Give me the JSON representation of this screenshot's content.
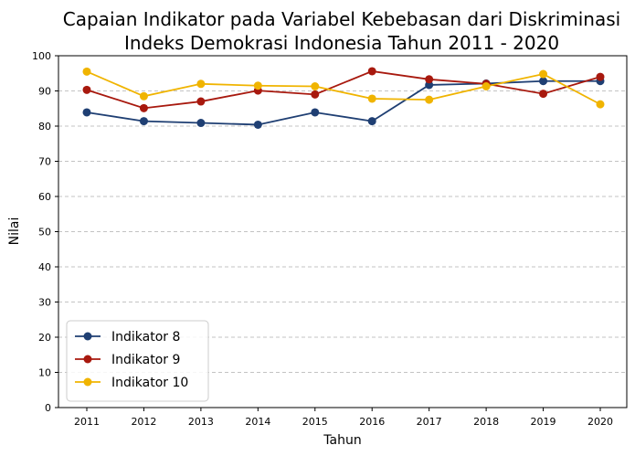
{
  "chart_data": {
    "type": "line",
    "title": "Capaian Indikator pada Variabel Kebebasan dari Diskriminasi",
    "subtitle": "Indeks Demokrasi Indonesia Tahun 2011 - 2020",
    "xlabel": "Tahun",
    "ylabel": "Nilai",
    "ylim": [
      0,
      100
    ],
    "yticks": [
      0,
      10,
      20,
      30,
      40,
      50,
      60,
      70,
      80,
      90,
      100
    ],
    "grid": "horizontal-dashed",
    "legend_position": "bottom-left",
    "categories": [
      "2011",
      "2012",
      "2013",
      "2014",
      "2015",
      "2016",
      "2017",
      "2018",
      "2019",
      "2020"
    ],
    "series": [
      {
        "name": "Indikator 8",
        "color": "#1f3f73",
        "values": [
          83.9,
          81.4,
          80.9,
          80.4,
          83.9,
          81.4,
          91.7,
          92.1,
          92.8,
          92.8
        ]
      },
      {
        "name": "Indikator 9",
        "color": "#a8190e",
        "values": [
          90.3,
          85.1,
          87.0,
          90.1,
          89.0,
          95.6,
          93.3,
          92.0,
          89.2,
          94.0
        ]
      },
      {
        "name": "Indikator 10",
        "color": "#f0b400",
        "values": [
          95.5,
          88.5,
          92.0,
          91.5,
          91.3,
          87.8,
          87.5,
          91.3,
          94.8,
          86.2
        ]
      }
    ]
  }
}
